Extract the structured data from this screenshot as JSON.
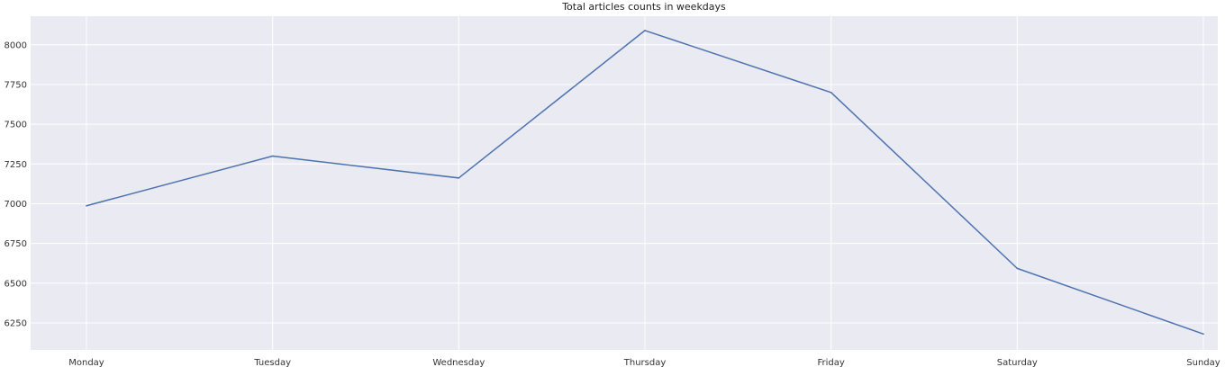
{
  "chart_data": {
    "type": "line",
    "title": "Total articles counts in weekdays",
    "xlabel": "",
    "ylabel": "",
    "categories": [
      "Monday",
      "Tuesday",
      "Wednesday",
      "Thursday",
      "Friday",
      "Saturday",
      "Sunday"
    ],
    "series": [
      {
        "values": [
          6987,
          7300,
          7162,
          8090,
          7700,
          6593,
          6180
        ]
      }
    ],
    "ylim": [
      6080,
      8180
    ],
    "yticks": [
      6250,
      6500,
      6750,
      7000,
      7250,
      7500,
      7750,
      8000
    ],
    "grid": true,
    "colors": {
      "plot_background": "#eaeaf2",
      "grid": "#ffffff",
      "line": "#4c72b0"
    }
  }
}
